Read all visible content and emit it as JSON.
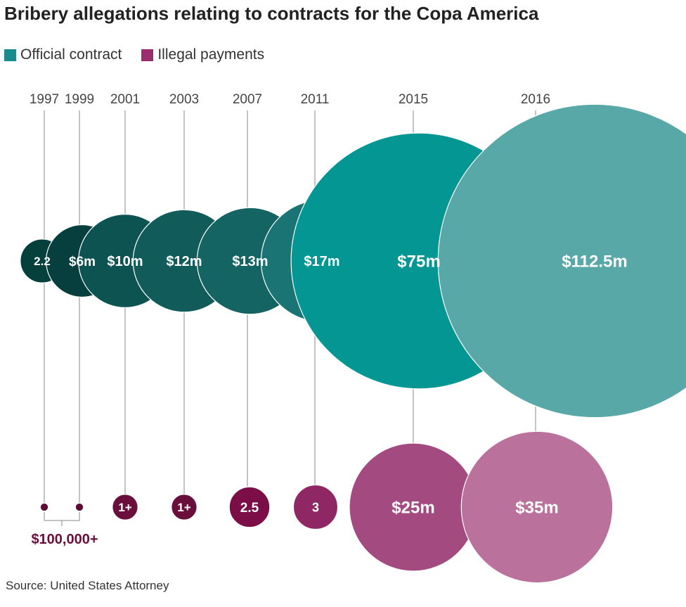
{
  "chart_data": {
    "type": "bubble",
    "title": "Bribery allegations relating to contracts for the Copa America",
    "legend": [
      {
        "name": "Official contract",
        "color": "#1a8a8c"
      },
      {
        "name": "Illegal payments",
        "color": "#9b2c6f"
      }
    ],
    "legend_position": "top-left",
    "grid": false,
    "years": [
      "1997",
      "1999",
      "2001",
      "2003",
      "2007",
      "2011",
      "2015",
      "2016"
    ],
    "series": [
      {
        "name": "Official contract",
        "unit": "$m",
        "values": [
          2.2,
          6,
          10,
          12,
          13,
          17,
          75,
          112.5
        ],
        "labels": [
          "2.2",
          "$6m",
          "$10m",
          "$12m",
          "$13m",
          "$17m",
          "$75m",
          "$112.5m"
        ],
        "colors": [
          "#05403d",
          "#063f3e",
          "#0d5352",
          "#115c5b",
          "#136462",
          "#1a7473",
          "#039693",
          "#58a8a7"
        ]
      },
      {
        "name": "Illegal payments",
        "unit": "$m",
        "values": [
          0.1,
          0.1,
          1,
          1,
          2.5,
          3,
          25,
          35
        ],
        "labels": [
          "",
          "",
          "1+",
          "1+",
          "2.5",
          "3",
          "$25m",
          "$35m"
        ],
        "colors": [
          "#5e0a35",
          "#5e0a35",
          "#6a0f3c",
          "#6a0f3c",
          "#7b0e47",
          "#8f2764",
          "#a34a80",
          "#ba729c"
        ]
      }
    ],
    "annotation": "$100,000+"
  },
  "source": "Source: United States Attorney"
}
